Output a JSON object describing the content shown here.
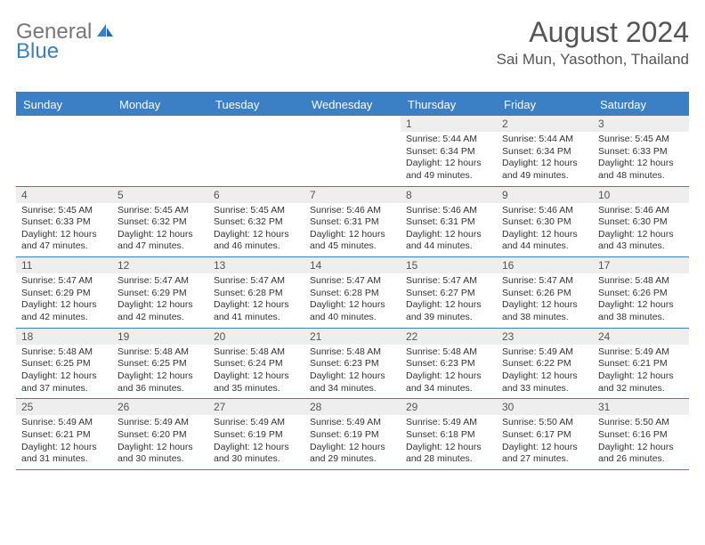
{
  "logo": {
    "gray": "General",
    "blue": "Blue"
  },
  "title": {
    "month": "August 2024",
    "location": "Sai Mun, Yasothon, Thailand"
  },
  "weekdays": [
    "Sunday",
    "Monday",
    "Tuesday",
    "Wednesday",
    "Thursday",
    "Friday",
    "Saturday"
  ],
  "colors": {
    "accent": "#3b7fc4",
    "dayband": "#eeeeee",
    "text": "#333333"
  },
  "layout": {
    "columns": 7,
    "rows": 5
  },
  "weeks": [
    [
      {
        "num": "",
        "empty": true
      },
      {
        "num": "",
        "empty": true
      },
      {
        "num": "",
        "empty": true
      },
      {
        "num": "",
        "empty": true
      },
      {
        "num": "1",
        "sunrise": "5:44 AM",
        "sunset": "6:34 PM",
        "daylight": "12 hours and 49 minutes."
      },
      {
        "num": "2",
        "sunrise": "5:44 AM",
        "sunset": "6:34 PM",
        "daylight": "12 hours and 49 minutes."
      },
      {
        "num": "3",
        "sunrise": "5:45 AM",
        "sunset": "6:33 PM",
        "daylight": "12 hours and 48 minutes."
      }
    ],
    [
      {
        "num": "4",
        "sunrise": "5:45 AM",
        "sunset": "6:33 PM",
        "daylight": "12 hours and 47 minutes."
      },
      {
        "num": "5",
        "sunrise": "5:45 AM",
        "sunset": "6:32 PM",
        "daylight": "12 hours and 47 minutes."
      },
      {
        "num": "6",
        "sunrise": "5:45 AM",
        "sunset": "6:32 PM",
        "daylight": "12 hours and 46 minutes."
      },
      {
        "num": "7",
        "sunrise": "5:46 AM",
        "sunset": "6:31 PM",
        "daylight": "12 hours and 45 minutes."
      },
      {
        "num": "8",
        "sunrise": "5:46 AM",
        "sunset": "6:31 PM",
        "daylight": "12 hours and 44 minutes."
      },
      {
        "num": "9",
        "sunrise": "5:46 AM",
        "sunset": "6:30 PM",
        "daylight": "12 hours and 44 minutes."
      },
      {
        "num": "10",
        "sunrise": "5:46 AM",
        "sunset": "6:30 PM",
        "daylight": "12 hours and 43 minutes."
      }
    ],
    [
      {
        "num": "11",
        "sunrise": "5:47 AM",
        "sunset": "6:29 PM",
        "daylight": "12 hours and 42 minutes."
      },
      {
        "num": "12",
        "sunrise": "5:47 AM",
        "sunset": "6:29 PM",
        "daylight": "12 hours and 42 minutes."
      },
      {
        "num": "13",
        "sunrise": "5:47 AM",
        "sunset": "6:28 PM",
        "daylight": "12 hours and 41 minutes."
      },
      {
        "num": "14",
        "sunrise": "5:47 AM",
        "sunset": "6:28 PM",
        "daylight": "12 hours and 40 minutes."
      },
      {
        "num": "15",
        "sunrise": "5:47 AM",
        "sunset": "6:27 PM",
        "daylight": "12 hours and 39 minutes."
      },
      {
        "num": "16",
        "sunrise": "5:47 AM",
        "sunset": "6:26 PM",
        "daylight": "12 hours and 38 minutes."
      },
      {
        "num": "17",
        "sunrise": "5:48 AM",
        "sunset": "6:26 PM",
        "daylight": "12 hours and 38 minutes."
      }
    ],
    [
      {
        "num": "18",
        "sunrise": "5:48 AM",
        "sunset": "6:25 PM",
        "daylight": "12 hours and 37 minutes."
      },
      {
        "num": "19",
        "sunrise": "5:48 AM",
        "sunset": "6:25 PM",
        "daylight": "12 hours and 36 minutes."
      },
      {
        "num": "20",
        "sunrise": "5:48 AM",
        "sunset": "6:24 PM",
        "daylight": "12 hours and 35 minutes."
      },
      {
        "num": "21",
        "sunrise": "5:48 AM",
        "sunset": "6:23 PM",
        "daylight": "12 hours and 34 minutes."
      },
      {
        "num": "22",
        "sunrise": "5:48 AM",
        "sunset": "6:23 PM",
        "daylight": "12 hours and 34 minutes."
      },
      {
        "num": "23",
        "sunrise": "5:49 AM",
        "sunset": "6:22 PM",
        "daylight": "12 hours and 33 minutes."
      },
      {
        "num": "24",
        "sunrise": "5:49 AM",
        "sunset": "6:21 PM",
        "daylight": "12 hours and 32 minutes."
      }
    ],
    [
      {
        "num": "25",
        "sunrise": "5:49 AM",
        "sunset": "6:21 PM",
        "daylight": "12 hours and 31 minutes."
      },
      {
        "num": "26",
        "sunrise": "5:49 AM",
        "sunset": "6:20 PM",
        "daylight": "12 hours and 30 minutes."
      },
      {
        "num": "27",
        "sunrise": "5:49 AM",
        "sunset": "6:19 PM",
        "daylight": "12 hours and 30 minutes."
      },
      {
        "num": "28",
        "sunrise": "5:49 AM",
        "sunset": "6:19 PM",
        "daylight": "12 hours and 29 minutes."
      },
      {
        "num": "29",
        "sunrise": "5:49 AM",
        "sunset": "6:18 PM",
        "daylight": "12 hours and 28 minutes."
      },
      {
        "num": "30",
        "sunrise": "5:50 AM",
        "sunset": "6:17 PM",
        "daylight": "12 hours and 27 minutes."
      },
      {
        "num": "31",
        "sunrise": "5:50 AM",
        "sunset": "6:16 PM",
        "daylight": "12 hours and 26 minutes."
      }
    ]
  ]
}
